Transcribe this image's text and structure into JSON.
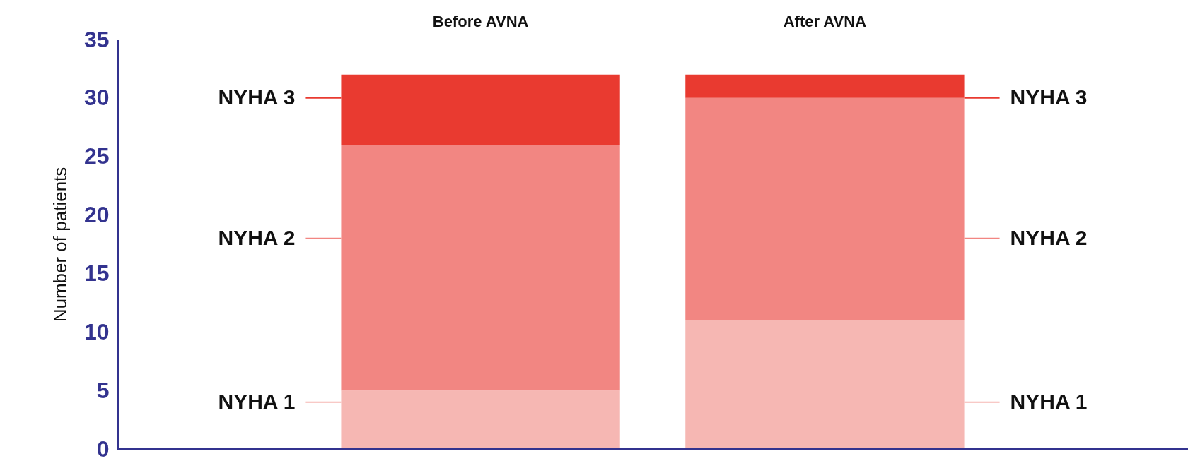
{
  "chart_data": {
    "type": "bar",
    "stacked": true,
    "categories": [
      "Before AVNA",
      "After AVNA"
    ],
    "ylabel": "Number of patients",
    "legend": "right",
    "ylim": [
      0,
      35
    ],
    "yticks": [
      0,
      5,
      10,
      15,
      20,
      25,
      30,
      35
    ],
    "series": [
      {
        "name": "NYHA 1",
        "color": "#f6b7b3",
        "values": [
          5,
          11
        ]
      },
      {
        "name": "NYHA 2",
        "color": "#f28682",
        "values": [
          21,
          19
        ]
      },
      {
        "name": "NYHA 3",
        "color": "#e93a30",
        "values": [
          6,
          2
        ]
      }
    ]
  }
}
